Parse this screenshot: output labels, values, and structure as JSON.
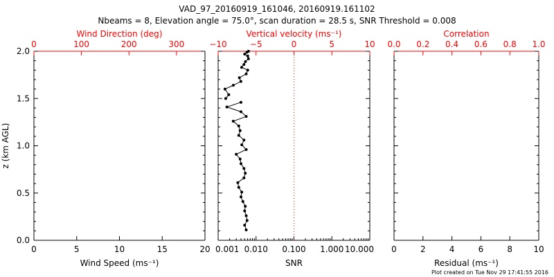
{
  "header": {
    "title": "VAD_97_20160919_161046, 20160919.161102",
    "subtitle": "Nbeams = 8, Elevation angle = 75.0°, scan duration = 28.5 s, SNR Threshold = 0.008"
  },
  "footer": {
    "credit": "Plot created on Tue Nov 29 17:41:55 2016"
  },
  "colors": {
    "axis": "#000000",
    "accent": "#ff0000",
    "series": "#000000"
  },
  "chart_data": [
    {
      "type": "scatter",
      "panel": "left",
      "ylabel": "z (km AGL)",
      "ylim": [
        0,
        2
      ],
      "yticks": [
        "0.0",
        "0.5",
        "1.0",
        "1.5",
        "2.0"
      ],
      "bottom_axis": {
        "label": "Wind Speed (ms⁻¹)",
        "lim": [
          0,
          20
        ],
        "ticks": [
          "0",
          "5",
          "10",
          "15",
          "20"
        ]
      },
      "top_axis": {
        "label": "Wind Direction (deg)",
        "lim": [
          0,
          360
        ],
        "ticks": [
          "0",
          "100",
          "200",
          "300"
        ]
      },
      "series": []
    },
    {
      "type": "line",
      "panel": "middle",
      "ylim": [
        0,
        2
      ],
      "bottom_axis": {
        "label": "SNR",
        "scale": "log",
        "lim": [
          0.001,
          10
        ],
        "ticks": [
          "0.001",
          "0.010",
          "0.100",
          "1.000",
          "10.000"
        ]
      },
      "top_axis": {
        "label": "Vertical velocity (ms⁻¹)",
        "lim": [
          -10,
          10
        ],
        "ticks": [
          "−10",
          "−5",
          "0",
          "5",
          "10"
        ]
      },
      "reference_line": {
        "axis": "top",
        "value": 0,
        "style": "dotted"
      },
      "series": [
        {
          "axis": "bottom",
          "x": [
            0.0055,
            0.005,
            0.0058,
            0.0055,
            0.005,
            0.0052,
            0.0045,
            0.004,
            0.0042,
            0.0035,
            0.0033,
            0.0048,
            0.0052,
            0.0048,
            0.004,
            0.0038,
            0.003,
            0.0055,
            0.0042,
            0.0048,
            0.0035,
            0.0038,
            0.0035,
            0.0025,
            0.0055,
            0.004,
            0.0017,
            0.004
          ],
          "y": [
            0.11,
            0.16,
            0.21,
            0.26,
            0.31,
            0.36,
            0.41,
            0.46,
            0.51,
            0.56,
            0.61,
            0.66,
            0.71,
            0.76,
            0.81,
            0.86,
            0.91,
            0.96,
            1.01,
            1.06,
            1.11,
            1.16,
            1.21,
            1.26,
            1.31,
            1.36,
            1.41,
            1.46
          ]
        },
        {
          "axis": "top",
          "x": [
            -9.0,
            -8.6,
            -9.1,
            -8.0,
            -7.0,
            -7.2,
            -6.3,
            -6.1,
            -6.9,
            -6.6,
            -6.4,
            -6.0,
            -6.1,
            -6.5,
            -6.2,
            -6.0
          ],
          "y": [
            1.5,
            1.54,
            1.6,
            1.64,
            1.68,
            1.72,
            1.76,
            1.8,
            1.83,
            1.86,
            1.89,
            1.92,
            1.95,
            1.97,
            1.99,
            2.0
          ]
        }
      ]
    },
    {
      "type": "scatter",
      "panel": "right",
      "ylim": [
        0,
        2
      ],
      "bottom_axis": {
        "label": "Residual (ms⁻¹)",
        "lim": [
          0,
          10
        ],
        "ticks": [
          "0",
          "2",
          "4",
          "6",
          "8",
          "10"
        ]
      },
      "top_axis": {
        "label": "Correlation",
        "lim": [
          0,
          1
        ],
        "ticks": [
          "0.0",
          "0.2",
          "0.4",
          "0.6",
          "0.8",
          "1.0"
        ]
      },
      "series": []
    }
  ]
}
